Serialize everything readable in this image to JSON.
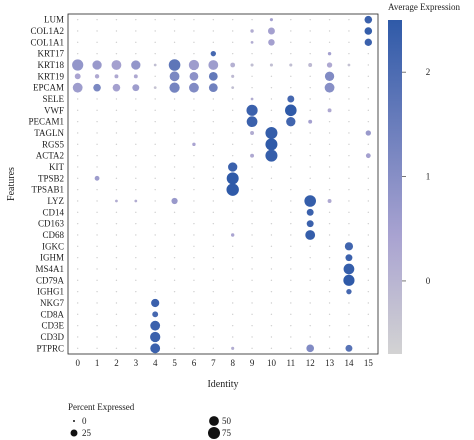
{
  "chart_data": {
    "type": "dot",
    "title": "",
    "xlabel": "Identity",
    "ylabel": "Features",
    "x_categories": [
      "0",
      "1",
      "2",
      "3",
      "4",
      "5",
      "6",
      "7",
      "8",
      "9",
      "10",
      "11",
      "12",
      "13",
      "14",
      "15"
    ],
    "y_categories": [
      "LUM",
      "COL1A2",
      "COL1A1",
      "KRT17",
      "KRT18",
      "KRT19",
      "EPCAM",
      "SELE",
      "VWF",
      "PECAM1",
      "TAGLN",
      "RGS5",
      "ACTA2",
      "KIT",
      "TPSB2",
      "TPSAB1",
      "LYZ",
      "CD14",
      "CD163",
      "CD68",
      "IGKC",
      "IGHM",
      "MS4A1",
      "CD79A",
      "IGHG1",
      "NKG7",
      "CD8A",
      "CD3E",
      "CD3D",
      "PTPRC"
    ],
    "color_legend": {
      "title": "Average Expression",
      "ticks": [
        0,
        1,
        2
      ],
      "range": [
        -0.7,
        2.5
      ],
      "low_color": "#d3d3d3",
      "high_color": "#2f5aa8"
    },
    "size_legend": {
      "title": "Percent Expressed",
      "values": [
        0,
        25,
        50,
        75
      ]
    },
    "points": [
      {
        "gene": "LUM",
        "cluster": "15",
        "pct": 30,
        "avg": 2.3
      },
      {
        "gene": "LUM",
        "cluster": "10",
        "pct": 5,
        "avg": 0.5
      },
      {
        "gene": "COL1A2",
        "cluster": "9",
        "pct": 6,
        "avg": 0.2
      },
      {
        "gene": "COL1A2",
        "cluster": "10",
        "pct": 25,
        "avg": 0.5
      },
      {
        "gene": "COL1A2",
        "cluster": "15",
        "pct": 30,
        "avg": 2.4
      },
      {
        "gene": "COL1A1",
        "cluster": "9",
        "pct": 4,
        "avg": 0.2
      },
      {
        "gene": "COL1A1",
        "cluster": "10",
        "pct": 22,
        "avg": 0.5
      },
      {
        "gene": "COL1A1",
        "cluster": "15",
        "pct": 28,
        "avg": 2.3
      },
      {
        "gene": "KRT17",
        "cluster": "7",
        "pct": 15,
        "avg": 2.1
      },
      {
        "gene": "KRT17",
        "cluster": "13",
        "pct": 6,
        "avg": 0.5
      },
      {
        "gene": "KRT18",
        "cluster": "0",
        "pct": 65,
        "avg": 0.8
      },
      {
        "gene": "KRT18",
        "cluster": "1",
        "pct": 45,
        "avg": 0.7
      },
      {
        "gene": "KRT18",
        "cluster": "2",
        "pct": 50,
        "avg": 0.5
      },
      {
        "gene": "KRT18",
        "cluster": "3",
        "pct": 45,
        "avg": 0.8
      },
      {
        "gene": "KRT18",
        "cluster": "4",
        "pct": 4,
        "avg": -0.2
      },
      {
        "gene": "KRT18",
        "cluster": "5",
        "pct": 70,
        "avg": 1.7
      },
      {
        "gene": "KRT18",
        "cluster": "6",
        "pct": 55,
        "avg": 0.6
      },
      {
        "gene": "KRT18",
        "cluster": "7",
        "pct": 50,
        "avg": 0.6
      },
      {
        "gene": "KRT18",
        "cluster": "8",
        "pct": 12,
        "avg": 0.1
      },
      {
        "gene": "KRT18",
        "cluster": "9",
        "pct": 5,
        "avg": -0.2
      },
      {
        "gene": "KRT18",
        "cluster": "10",
        "pct": 5,
        "avg": -0.2
      },
      {
        "gene": "KRT18",
        "cluster": "11",
        "pct": 5,
        "avg": -0.2
      },
      {
        "gene": "KRT18",
        "cluster": "12",
        "pct": 8,
        "avg": -0.1
      },
      {
        "gene": "KRT18",
        "cluster": "13",
        "pct": 15,
        "avg": 0.3
      },
      {
        "gene": "KRT18",
        "cluster": "14",
        "pct": 4,
        "avg": -0.3
      },
      {
        "gene": "KRT19",
        "cluster": "0",
        "pct": 18,
        "avg": 0.4
      },
      {
        "gene": "KRT19",
        "cluster": "1",
        "pct": 10,
        "avg": 0.3
      },
      {
        "gene": "KRT19",
        "cluster": "2",
        "pct": 8,
        "avg": 0.3
      },
      {
        "gene": "KRT19",
        "cluster": "3",
        "pct": 8,
        "avg": 0.3
      },
      {
        "gene": "KRT19",
        "cluster": "5",
        "pct": 50,
        "avg": 1.2
      },
      {
        "gene": "KRT19",
        "cluster": "6",
        "pct": 40,
        "avg": 0.9
      },
      {
        "gene": "KRT19",
        "cluster": "7",
        "pct": 40,
        "avg": 1.6
      },
      {
        "gene": "KRT19",
        "cluster": "8",
        "pct": 5,
        "avg": -0.1
      },
      {
        "gene": "KRT19",
        "cluster": "13",
        "pct": 45,
        "avg": 1.1
      },
      {
        "gene": "EPCAM",
        "cluster": "0",
        "pct": 50,
        "avg": 0.6
      },
      {
        "gene": "EPCAM",
        "cluster": "1",
        "pct": 30,
        "avg": 1.2
      },
      {
        "gene": "EPCAM",
        "cluster": "2",
        "pct": 30,
        "avg": 0.5
      },
      {
        "gene": "EPCAM",
        "cluster": "3",
        "pct": 25,
        "avg": 0.6
      },
      {
        "gene": "EPCAM",
        "cluster": "4",
        "pct": 4,
        "avg": -0.3
      },
      {
        "gene": "EPCAM",
        "cluster": "5",
        "pct": 55,
        "avg": 1.3
      },
      {
        "gene": "EPCAM",
        "cluster": "6",
        "pct": 50,
        "avg": 1.1
      },
      {
        "gene": "EPCAM",
        "cluster": "7",
        "pct": 40,
        "avg": 1.4
      },
      {
        "gene": "EPCAM",
        "cluster": "8",
        "pct": 4,
        "avg": -0.2
      },
      {
        "gene": "EPCAM",
        "cluster": "13",
        "pct": 50,
        "avg": 1.0
      },
      {
        "gene": "SELE",
        "cluster": "11",
        "pct": 25,
        "avg": 2.1
      },
      {
        "gene": "SELE",
        "cluster": "9",
        "pct": 4,
        "avg": 0.2
      },
      {
        "gene": "VWF",
        "cluster": "9",
        "pct": 65,
        "avg": 2.3
      },
      {
        "gene": "VWF",
        "cluster": "11",
        "pct": 70,
        "avg": 2.5
      },
      {
        "gene": "VWF",
        "cluster": "13",
        "pct": 8,
        "avg": 0.3
      },
      {
        "gene": "PECAM1",
        "cluster": "9",
        "pct": 60,
        "avg": 2.3
      },
      {
        "gene": "PECAM1",
        "cluster": "11",
        "pct": 45,
        "avg": 2.2
      },
      {
        "gene": "PECAM1",
        "cluster": "12",
        "pct": 8,
        "avg": 0.5
      },
      {
        "gene": "TAGLN",
        "cluster": "10",
        "pct": 75,
        "avg": 2.4
      },
      {
        "gene": "TAGLN",
        "cluster": "9",
        "pct": 8,
        "avg": 0.2
      },
      {
        "gene": "TAGLN",
        "cluster": "15",
        "pct": 15,
        "avg": 0.7
      },
      {
        "gene": "RGS5",
        "cluster": "10",
        "pct": 75,
        "avg": 2.5
      },
      {
        "gene": "RGS5",
        "cluster": "6",
        "pct": 6,
        "avg": 0.4
      },
      {
        "gene": "ACTA2",
        "cluster": "10",
        "pct": 75,
        "avg": 2.4
      },
      {
        "gene": "ACTA2",
        "cluster": "9",
        "pct": 8,
        "avg": 0.3
      },
      {
        "gene": "ACTA2",
        "cluster": "15",
        "pct": 12,
        "avg": 0.5
      },
      {
        "gene": "KIT",
        "cluster": "8",
        "pct": 45,
        "avg": 2.3
      },
      {
        "gene": "TPSB2",
        "cluster": "8",
        "pct": 75,
        "avg": 2.5
      },
      {
        "gene": "TPSB2",
        "cluster": "1",
        "pct": 12,
        "avg": 0.6
      },
      {
        "gene": "TPSAB1",
        "cluster": "8",
        "pct": 80,
        "avg": 2.5
      },
      {
        "gene": "LYZ",
        "cluster": "12",
        "pct": 70,
        "avg": 2.4
      },
      {
        "gene": "LYZ",
        "cluster": "5",
        "pct": 20,
        "avg": 0.7
      },
      {
        "gene": "LYZ",
        "cluster": "2",
        "pct": 4,
        "avg": 0.2
      },
      {
        "gene": "LYZ",
        "cluster": "3",
        "pct": 4,
        "avg": 0.2
      },
      {
        "gene": "LYZ",
        "cluster": "13",
        "pct": 8,
        "avg": 0.3
      },
      {
        "gene": "CD14",
        "cluster": "12",
        "pct": 25,
        "avg": 2.3
      },
      {
        "gene": "CD163",
        "cluster": "12",
        "pct": 25,
        "avg": 2.3
      },
      {
        "gene": "CD68",
        "cluster": "12",
        "pct": 50,
        "avg": 2.4
      },
      {
        "gene": "CD68",
        "cluster": "8",
        "pct": 6,
        "avg": 0.4
      },
      {
        "gene": "IGKC",
        "cluster": "14",
        "pct": 35,
        "avg": 2.2
      },
      {
        "gene": "IGHM",
        "cluster": "14",
        "pct": 25,
        "avg": 2.3
      },
      {
        "gene": "MS4A1",
        "cluster": "14",
        "pct": 60,
        "avg": 2.4
      },
      {
        "gene": "CD79A",
        "cluster": "14",
        "pct": 65,
        "avg": 2.5
      },
      {
        "gene": "IGHG1",
        "cluster": "14",
        "pct": 15,
        "avg": 2.1
      },
      {
        "gene": "NKG7",
        "cluster": "4",
        "pct": 35,
        "avg": 2.3
      },
      {
        "gene": "CD8A",
        "cluster": "4",
        "pct": 18,
        "avg": 2.1
      },
      {
        "gene": "CD3E",
        "cluster": "4",
        "pct": 50,
        "avg": 2.3
      },
      {
        "gene": "CD3D",
        "cluster": "4",
        "pct": 55,
        "avg": 2.3
      },
      {
        "gene": "PTPRC",
        "cluster": "4",
        "pct": 50,
        "avg": 2.3
      },
      {
        "gene": "PTPRC",
        "cluster": "12",
        "pct": 30,
        "avg": 1.1
      },
      {
        "gene": "PTPRC",
        "cluster": "14",
        "pct": 25,
        "avg": 1.8
      },
      {
        "gene": "PTPRC",
        "cluster": "8",
        "pct": 5,
        "avg": 0.2
      }
    ]
  }
}
